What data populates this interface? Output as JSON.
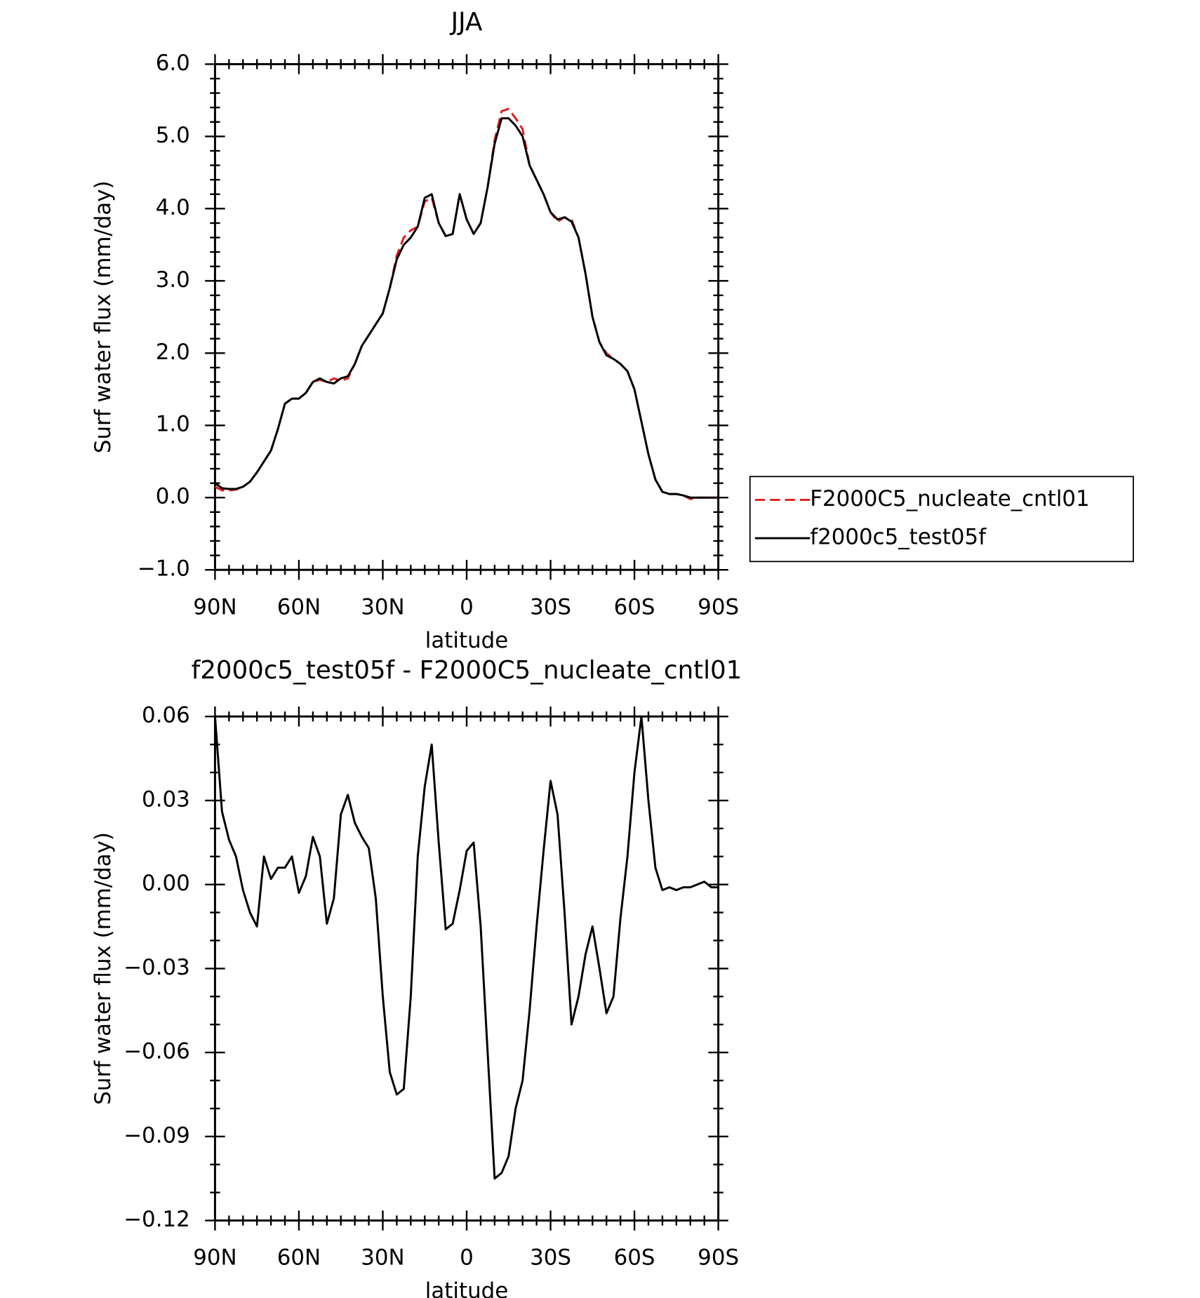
{
  "chart_data": [
    {
      "type": "line",
      "title": "JJA",
      "xlabel": "latitude",
      "ylabel": "Surf water flux (mm/day)",
      "x": [
        90,
        87.5,
        85,
        82.5,
        80,
        77.5,
        75,
        72.5,
        70,
        67.5,
        65,
        62.5,
        60,
        57.5,
        55,
        52.5,
        50,
        47.5,
        45,
        42.5,
        40,
        37.5,
        35,
        32.5,
        30,
        27.5,
        25,
        22.5,
        20,
        17.5,
        15,
        12.5,
        10,
        7.5,
        5,
        2.5,
        0,
        -2.5,
        -5,
        -7.5,
        -10,
        -12.5,
        -15,
        -17.5,
        -20,
        -22.5,
        -25,
        -27.5,
        -30,
        -32.5,
        -35,
        -37.5,
        -40,
        -42.5,
        -45,
        -47.5,
        -50,
        -52.5,
        -55,
        -57.5,
        -60,
        -62.5,
        -65,
        -67.5,
        -70,
        -72.5,
        -75,
        -77.5,
        -80,
        -82.5,
        -85,
        -87.5,
        -90
      ],
      "series": [
        {
          "name": "F2000C5_nucleate_cntl01",
          "color": "#e41a1c",
          "dash": true,
          "values": [
            0.15,
            0.1,
            0.1,
            0.11,
            0.15,
            0.22,
            0.35,
            0.5,
            0.65,
            0.95,
            1.3,
            1.37,
            1.37,
            1.45,
            1.6,
            1.63,
            1.6,
            1.65,
            1.62,
            1.65,
            1.85,
            2.1,
            2.25,
            2.4,
            2.55,
            2.9,
            3.35,
            3.6,
            3.7,
            3.75,
            4.1,
            4.15,
            3.8,
            3.62,
            3.65,
            4.2,
            3.85,
            3.65,
            3.8,
            4.3,
            4.95,
            5.35,
            5.38,
            5.25,
            5.1,
            4.6,
            4.4,
            4.2,
            3.95,
            3.82,
            3.88,
            3.85,
            3.6,
            3.1,
            2.5,
            2.15,
            2.0,
            1.92,
            1.85,
            1.75,
            1.5,
            1.05,
            0.6,
            0.25,
            0.08,
            0.05,
            0.05,
            0.03,
            -0.02,
            0.0,
            0.0,
            0.0,
            0.0
          ]
        },
        {
          "name": "f2000c5_test05f",
          "color": "#000000",
          "dash": false,
          "values": [
            0.2,
            0.13,
            0.12,
            0.12,
            0.15,
            0.22,
            0.35,
            0.5,
            0.65,
            0.95,
            1.3,
            1.37,
            1.37,
            1.45,
            1.6,
            1.65,
            1.6,
            1.58,
            1.65,
            1.68,
            1.85,
            2.1,
            2.25,
            2.4,
            2.55,
            2.9,
            3.3,
            3.5,
            3.6,
            3.75,
            4.15,
            4.2,
            3.8,
            3.62,
            3.65,
            4.2,
            3.85,
            3.65,
            3.8,
            4.3,
            4.9,
            5.25,
            5.25,
            5.15,
            5.0,
            4.6,
            4.4,
            4.2,
            3.95,
            3.85,
            3.88,
            3.82,
            3.6,
            3.1,
            2.5,
            2.15,
            1.97,
            1.92,
            1.85,
            1.75,
            1.5,
            1.05,
            0.6,
            0.25,
            0.08,
            0.05,
            0.05,
            0.03,
            0.0,
            0.0,
            0.0,
            0.0,
            0.0
          ]
        }
      ],
      "xlim": [
        90,
        -90
      ],
      "xticks": [
        {
          "value": 90,
          "label": "90N"
        },
        {
          "value": 60,
          "label": "60N"
        },
        {
          "value": 30,
          "label": "30N"
        },
        0,
        {
          "value": -30,
          "label": "30S"
        },
        {
          "value": -60,
          "label": "60S"
        },
        {
          "value": -90,
          "label": "90S"
        }
      ],
      "ylim": [
        -1,
        6
      ],
      "yticks": [
        {
          "value": -1,
          "label": "−1.0"
        },
        {
          "value": 0,
          "label": "0.0"
        },
        {
          "value": 1,
          "label": "1.0"
        },
        {
          "value": 2,
          "label": "2.0"
        },
        {
          "value": 3,
          "label": "3.0"
        },
        {
          "value": 4,
          "label": "4.0"
        },
        {
          "value": 5,
          "label": "5.0"
        },
        {
          "value": 6,
          "label": "6.0"
        }
      ],
      "legend": "outside-right"
    },
    {
      "type": "line",
      "title": "f2000c5_test05f - F2000C5_nucleate_cntl01",
      "xlabel": "latitude",
      "ylabel": "Surf water flux (mm/day)",
      "x": [
        90,
        87.5,
        85,
        82.5,
        80,
        77.5,
        75,
        72.5,
        70,
        67.5,
        65,
        62.5,
        60,
        57.5,
        55,
        52.5,
        50,
        47.5,
        45,
        42.5,
        40,
        37.5,
        35,
        32.5,
        30,
        27.5,
        25,
        22.5,
        20,
        17.5,
        15,
        12.5,
        10,
        7.5,
        5,
        2.5,
        0,
        -2.5,
        -5,
        -7.5,
        -10,
        -12.5,
        -15,
        -17.5,
        -20,
        -22.5,
        -25,
        -27.5,
        -30,
        -32.5,
        -35,
        -37.5,
        -40,
        -42.5,
        -45,
        -47.5,
        -50,
        -52.5,
        -55,
        -57.5,
        -60,
        -62.5,
        -65,
        -67.5,
        -70,
        -72.5,
        -75,
        -77.5,
        -80,
        -82.5,
        -85,
        -87.5,
        -90
      ],
      "series": [
        {
          "color": "#000000",
          "dash": false,
          "values": [
            0.06,
            0.026,
            0.016,
            0.01,
            -0.002,
            -0.01,
            -0.015,
            0.01,
            0.002,
            0.006,
            0.006,
            0.01,
            -0.003,
            0.003,
            0.017,
            0.01,
            -0.014,
            -0.005,
            0.025,
            0.032,
            0.022,
            0.017,
            0.013,
            -0.005,
            -0.04,
            -0.067,
            -0.075,
            -0.073,
            -0.04,
            0.01,
            0.035,
            0.05,
            0.015,
            -0.016,
            -0.014,
            -0.002,
            0.012,
            0.015,
            -0.015,
            -0.06,
            -0.105,
            -0.103,
            -0.097,
            -0.08,
            -0.07,
            -0.045,
            -0.015,
            0.012,
            0.037,
            0.025,
            -0.01,
            -0.05,
            -0.04,
            -0.025,
            -0.015,
            -0.03,
            -0.046,
            -0.04,
            -0.012,
            0.01,
            0.04,
            0.06,
            0.03,
            0.006,
            -0.002,
            -0.001,
            -0.002,
            -0.001,
            -0.001,
            0.0,
            0.001,
            -0.001,
            -0.001
          ]
        }
      ],
      "xlim": [
        90,
        -90
      ],
      "xticks": [
        {
          "value": 90,
          "label": "90N"
        },
        {
          "value": 60,
          "label": "60N"
        },
        {
          "value": 30,
          "label": "30N"
        },
        0,
        {
          "value": -30,
          "label": "30S"
        },
        {
          "value": -60,
          "label": "60S"
        },
        {
          "value": -90,
          "label": "90S"
        }
      ],
      "ylim": [
        -0.12,
        0.06
      ],
      "yticks": [
        {
          "value": -0.12,
          "label": "−0.12"
        },
        {
          "value": -0.09,
          "label": "−0.09"
        },
        {
          "value": -0.06,
          "label": "−0.06"
        },
        {
          "value": -0.03,
          "label": "−0.03"
        },
        {
          "value": 0,
          "label": "0.00"
        },
        {
          "value": 0.03,
          "label": "0.03"
        },
        {
          "value": 0.06,
          "label": "0.06"
        }
      ]
    }
  ]
}
